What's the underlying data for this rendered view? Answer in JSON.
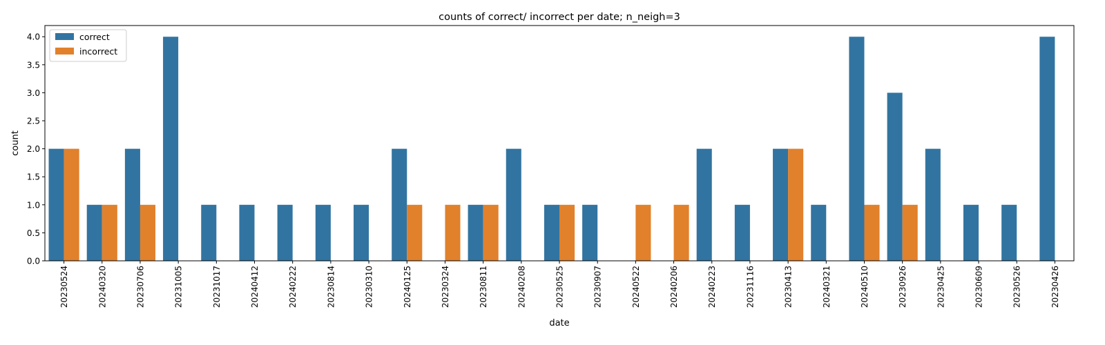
{
  "chart_data": {
    "type": "bar",
    "title": "counts of correct/ incorrect per date; n_neigh=3",
    "xlabel": "date",
    "ylabel": "count",
    "ylim": [
      0,
      4.2
    ],
    "yticks": [
      "0.0",
      "0.5",
      "1.0",
      "1.5",
      "2.0",
      "2.5",
      "3.0",
      "3.5",
      "4.0"
    ],
    "categories": [
      "20230524",
      "20240320",
      "20230706",
      "20231005",
      "20231017",
      "20240412",
      "20240222",
      "20230814",
      "20230310",
      "20240125",
      "20230324",
      "20230811",
      "20240208",
      "20230525",
      "20230907",
      "20240522",
      "20240206",
      "20240223",
      "20231116",
      "20230413",
      "20240321",
      "20240510",
      "20230926",
      "20230425",
      "20230609",
      "20230526",
      "20230426"
    ],
    "series": [
      {
        "name": "correct",
        "color": "#3274a1",
        "values": [
          2,
          1,
          2,
          4,
          1,
          1,
          1,
          1,
          1,
          2,
          0,
          1,
          2,
          1,
          1,
          0,
          0,
          2,
          1,
          2,
          1,
          4,
          3,
          2,
          1,
          1,
          4
        ]
      },
      {
        "name": "incorrect",
        "color": "#e1812c",
        "values": [
          2,
          1,
          1,
          0,
          0,
          0,
          0,
          0,
          0,
          1,
          1,
          1,
          0,
          1,
          0,
          1,
          1,
          0,
          0,
          2,
          0,
          1,
          1,
          0,
          0,
          0,
          0
        ]
      }
    ],
    "grid": false,
    "legend": "top-left"
  }
}
